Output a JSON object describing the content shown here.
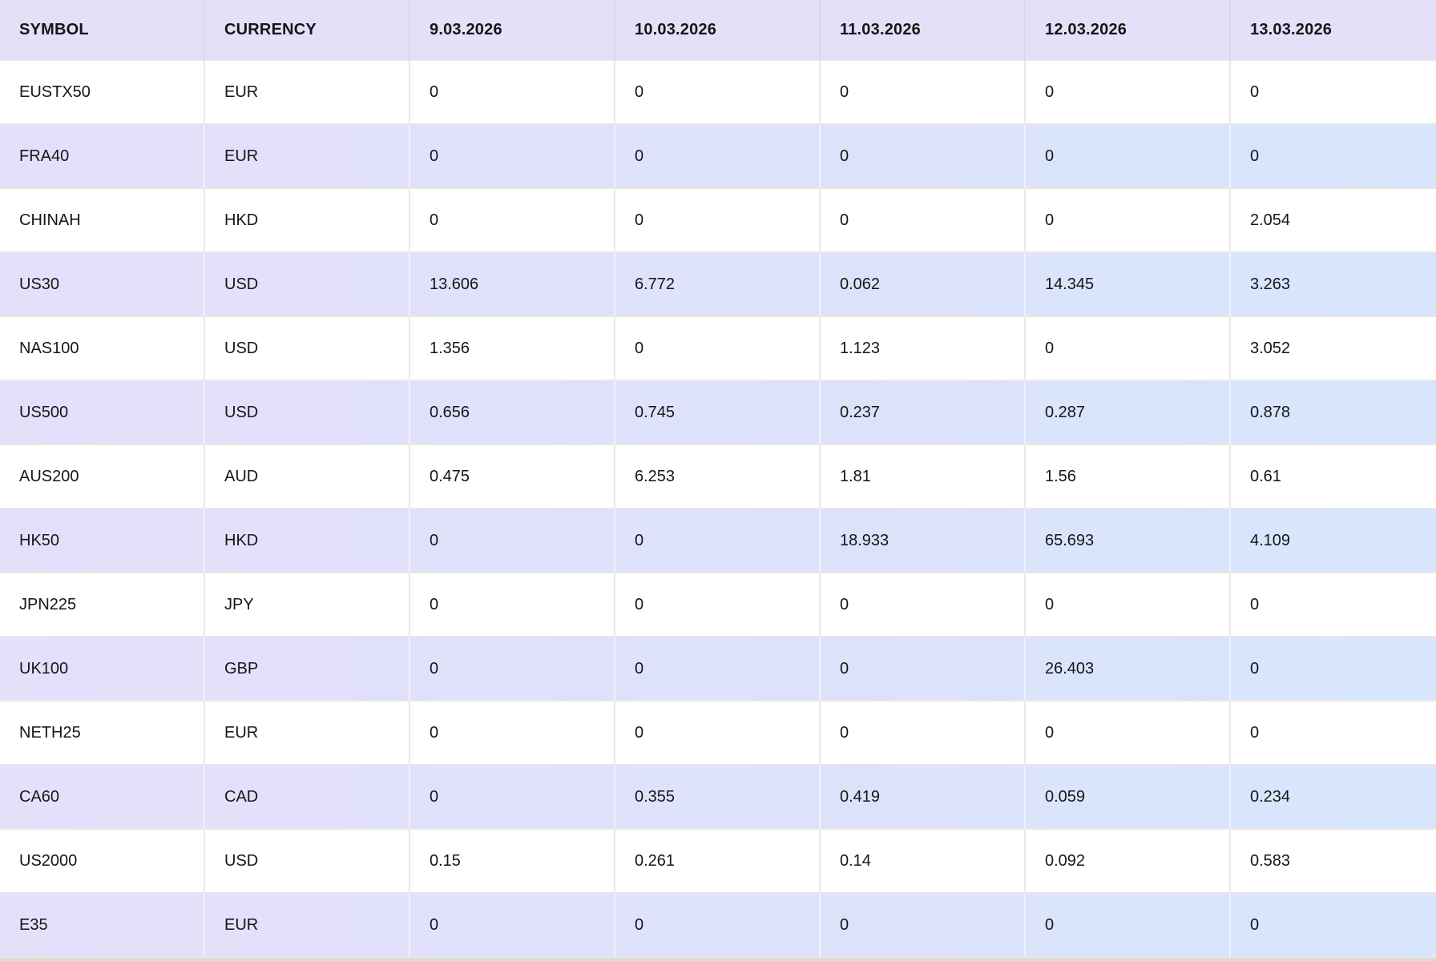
{
  "table": {
    "columns": [
      "SYMBOL",
      "CURRENCY",
      "9.03.2026",
      "10.03.2026",
      "11.03.2026",
      "12.03.2026",
      "13.03.2026"
    ],
    "rows": [
      {
        "symbol": "EUSTX50",
        "currency": "EUR",
        "values": [
          "0",
          "0",
          "0",
          "0",
          "0"
        ]
      },
      {
        "symbol": "FRA40",
        "currency": "EUR",
        "values": [
          "0",
          "0",
          "0",
          "0",
          "0"
        ]
      },
      {
        "symbol": "CHINAH",
        "currency": "HKD",
        "values": [
          "0",
          "0",
          "0",
          "0",
          "2.054"
        ]
      },
      {
        "symbol": "US30",
        "currency": "USD",
        "values": [
          "13.606",
          "6.772",
          "0.062",
          "14.345",
          "3.263"
        ]
      },
      {
        "symbol": "NAS100",
        "currency": "USD",
        "values": [
          "1.356",
          "0",
          "1.123",
          "0",
          "3.052"
        ]
      },
      {
        "symbol": "US500",
        "currency": "USD",
        "values": [
          "0.656",
          "0.745",
          "0.237",
          "0.287",
          "0.878"
        ]
      },
      {
        "symbol": "AUS200",
        "currency": "AUD",
        "values": [
          "0.475",
          "6.253",
          "1.81",
          "1.56",
          "0.61"
        ]
      },
      {
        "symbol": "HK50",
        "currency": "HKD",
        "values": [
          "0",
          "0",
          "18.933",
          "65.693",
          "4.109"
        ]
      },
      {
        "symbol": "JPN225",
        "currency": "JPY",
        "values": [
          "0",
          "0",
          "0",
          "0",
          "0"
        ]
      },
      {
        "symbol": "UK100",
        "currency": "GBP",
        "values": [
          "0",
          "0",
          "0",
          "26.403",
          "0"
        ]
      },
      {
        "symbol": "NETH25",
        "currency": "EUR",
        "values": [
          "0",
          "0",
          "0",
          "0",
          "0"
        ]
      },
      {
        "symbol": "CA60",
        "currency": "CAD",
        "values": [
          "0",
          "0.355",
          "0.419",
          "0.059",
          "0.234"
        ]
      },
      {
        "symbol": "US2000",
        "currency": "USD",
        "values": [
          "0.15",
          "0.261",
          "0.14",
          "0.092",
          "0.583"
        ]
      },
      {
        "symbol": "E35",
        "currency": "EUR",
        "values": [
          "0",
          "0",
          "0",
          "0",
          "0"
        ]
      }
    ]
  },
  "colors": {
    "header_bg": "#e4e0f8",
    "row_tint_left": "#e5dffa",
    "row_tint_right": "#d7e6fc",
    "grid_line": "#e9e7e4",
    "text": "#161616"
  }
}
